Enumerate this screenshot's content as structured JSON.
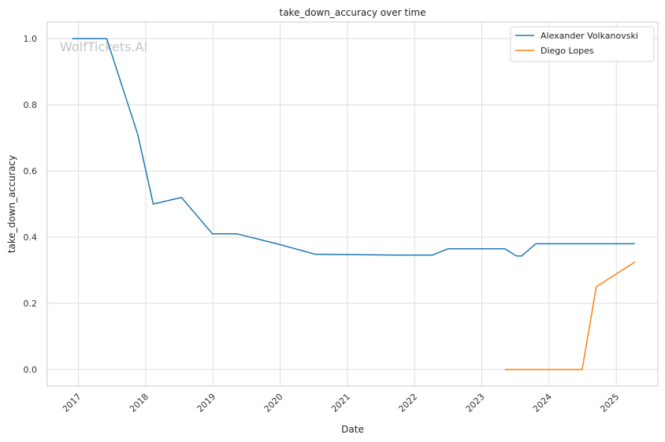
{
  "chart_data": {
    "type": "line",
    "title": "take_down_accuracy over time",
    "xlabel": "Date",
    "ylabel": "take_down_accuracy",
    "watermark": "WolfTickets.AI",
    "x_ticks": [
      "2017",
      "2018",
      "2019",
      "2020",
      "2021",
      "2022",
      "2023",
      "2024",
      "2025"
    ],
    "y_ticks": [
      "0.0",
      "0.2",
      "0.4",
      "0.6",
      "0.8",
      "1.0"
    ],
    "xlim": [
      "2016-07-15",
      "2025-08-15"
    ],
    "ylim": [
      -0.05,
      1.05
    ],
    "grid": true,
    "legend_position": "top-right",
    "series": [
      {
        "name": "Alexander Volkanovski",
        "color": "#1f77b4",
        "points": [
          {
            "x": "2016-11-27",
            "y": 1.0
          },
          {
            "x": "2017-06-03",
            "y": 1.0
          },
          {
            "x": "2017-11-19",
            "y": 0.71
          },
          {
            "x": "2018-02-11",
            "y": 0.5
          },
          {
            "x": "2018-07-14",
            "y": 0.52
          },
          {
            "x": "2018-12-29",
            "y": 0.41
          },
          {
            "x": "2019-05-11",
            "y": 0.41
          },
          {
            "x": "2019-12-14",
            "y": 0.38
          },
          {
            "x": "2020-07-12",
            "y": 0.348
          },
          {
            "x": "2021-09-25",
            "y": 0.346
          },
          {
            "x": "2022-04-09",
            "y": 0.346
          },
          {
            "x": "2022-07-02",
            "y": 0.365
          },
          {
            "x": "2023-02-12",
            "y": 0.365
          },
          {
            "x": "2023-05-06",
            "y": 0.365
          },
          {
            "x": "2023-07-08",
            "y": 0.343
          },
          {
            "x": "2023-08-05",
            "y": 0.343
          },
          {
            "x": "2023-10-21",
            "y": 0.38
          },
          {
            "x": "2024-02-17",
            "y": 0.38
          },
          {
            "x": "2025-04-12",
            "y": 0.38
          }
        ]
      },
      {
        "name": "Diego Lopes",
        "color": "#ff7f0e",
        "points": [
          {
            "x": "2023-05-06",
            "y": 0.0
          },
          {
            "x": "2023-09-16",
            "y": 0.0
          },
          {
            "x": "2024-04-13",
            "y": 0.0
          },
          {
            "x": "2024-06-29",
            "y": 0.0
          },
          {
            "x": "2024-09-14",
            "y": 0.25
          },
          {
            "x": "2025-04-12",
            "y": 0.325
          }
        ]
      }
    ]
  }
}
